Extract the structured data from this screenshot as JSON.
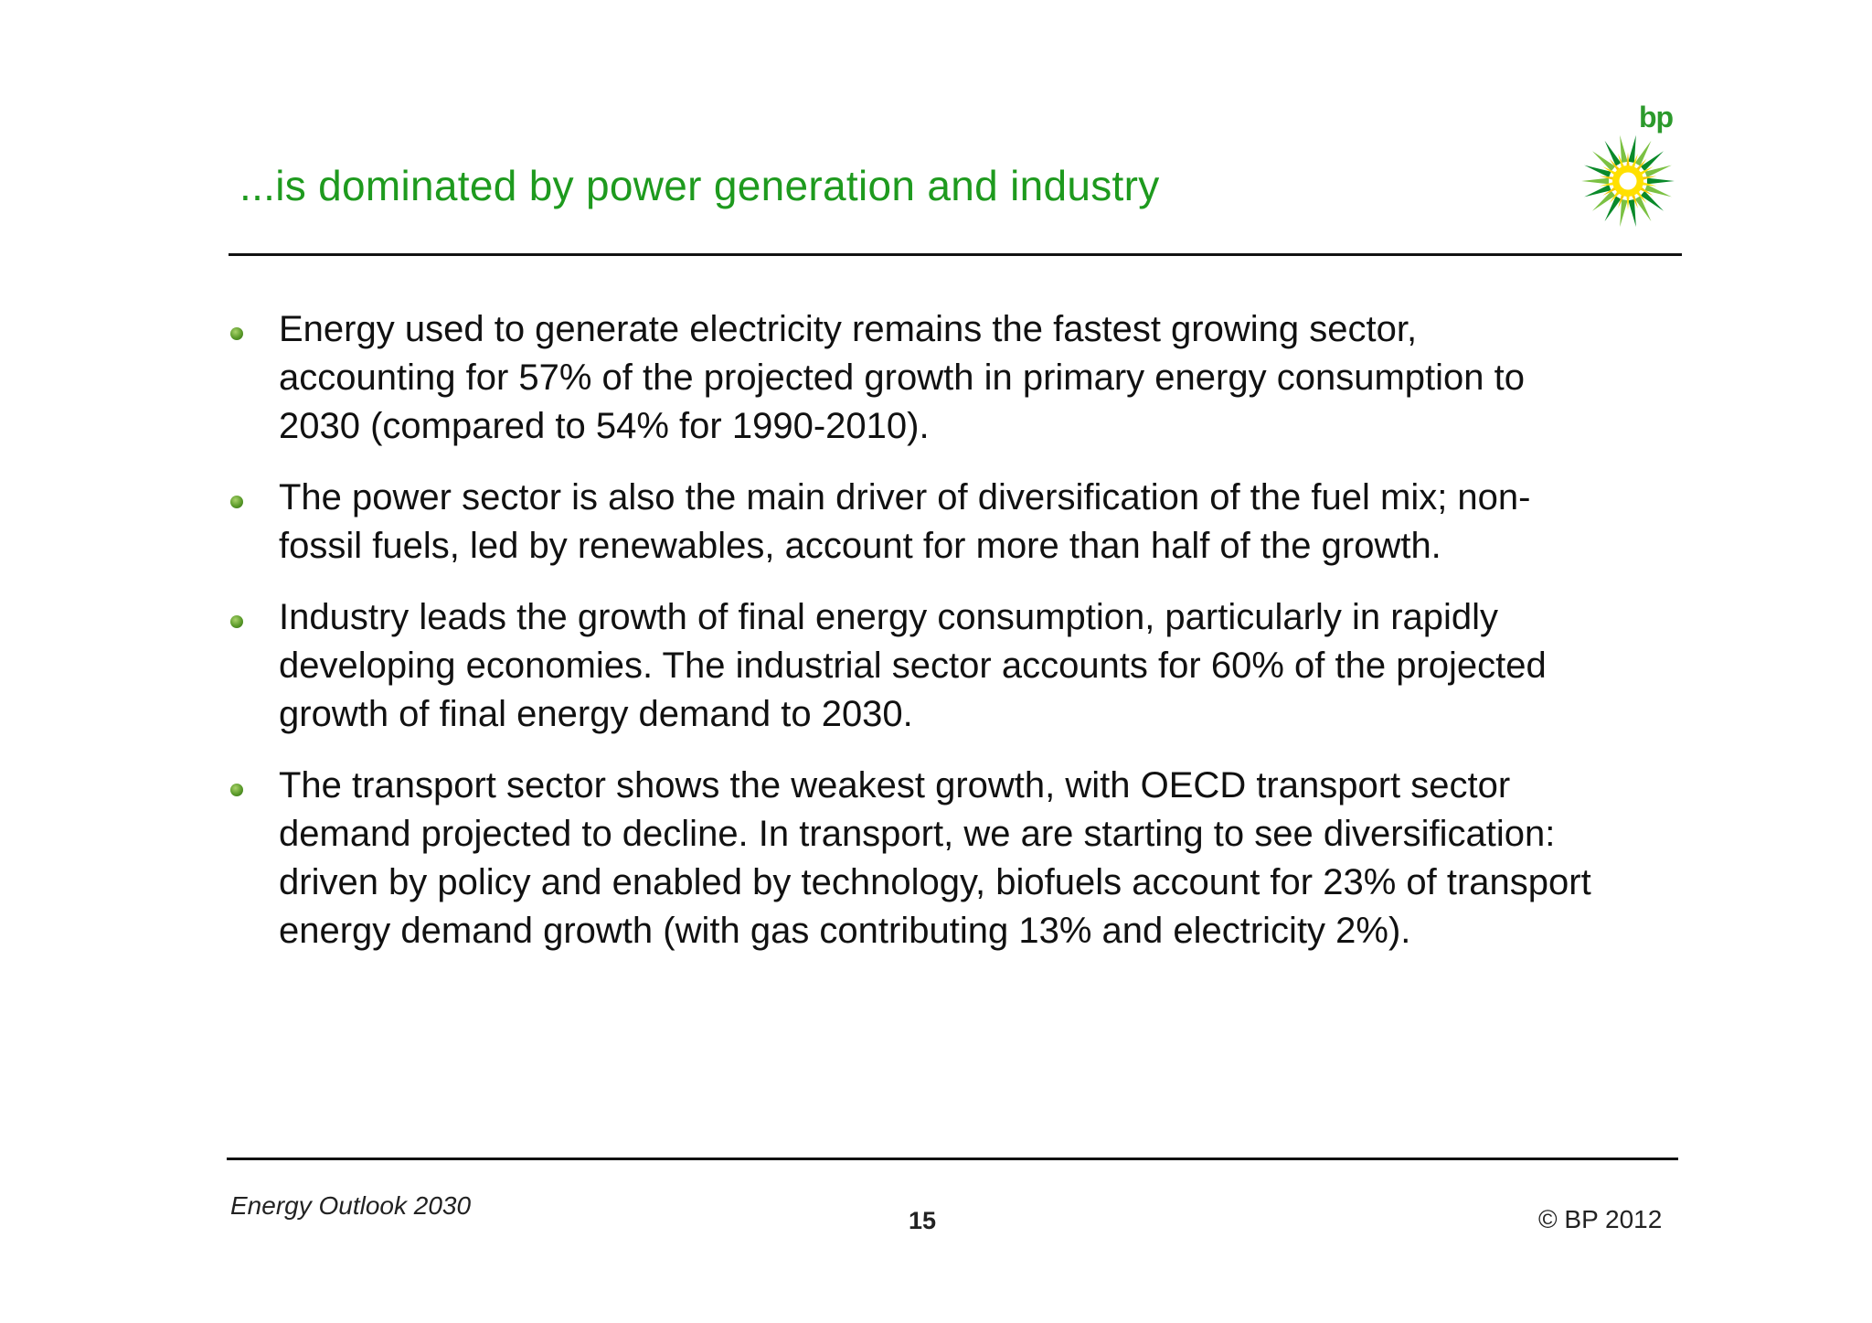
{
  "header": {
    "title": "...is dominated by power generation and industry",
    "logo_text": "bp",
    "logo_colors": {
      "green_dark": "#0a8a2a",
      "green_light": "#7bc142",
      "yellow": "#ffe000",
      "white": "#ffffff"
    },
    "title_color": "#1e9a1e"
  },
  "bullets": [
    {
      "text": "Energy used to generate electricity remains the fastest growing sector, accounting for 57% of the projected growth in primary energy consumption to 2030 (compared to 54% for 1990-2010)."
    },
    {
      "text": "The power sector is also the main driver of diversification of the fuel mix; non-fossil fuels, led by renewables, account for more than half of the growth."
    },
    {
      "text": "Industry leads the growth of final energy consumption, particularly in rapidly developing economies. The industrial sector accounts for 60% of the projected growth of final energy demand to 2030."
    },
    {
      "text": "The transport sector shows the weakest growth, with OECD transport sector demand projected to decline. In transport, we are starting to see diversification: driven by policy and enabled by technology, biofuels account for 23% of transport energy demand growth (with gas contributing 13% and electricity 2%)."
    }
  ],
  "footer": {
    "title": "Energy Outlook 2030",
    "page_number": "15",
    "copyright": "© BP 2012"
  }
}
